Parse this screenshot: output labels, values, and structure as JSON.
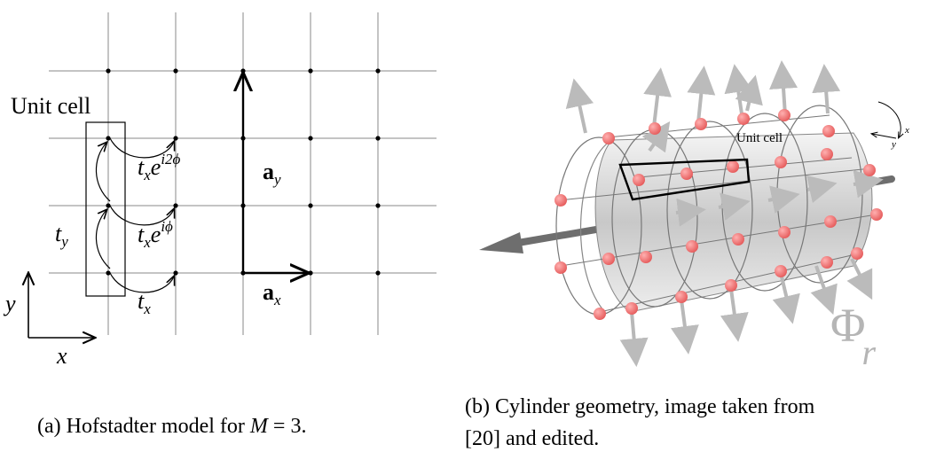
{
  "panel_a": {
    "unit_cell_label": "Unit cell",
    "hop_x": "t",
    "hop_x_sub": "x",
    "hop_phase1_base": "t",
    "hop_phase1_sub": "x",
    "hop_phase1_e": "e",
    "hop_phase1_exp": "iϕ",
    "hop_phase2_base": "t",
    "hop_phase2_sub": "x",
    "hop_phase2_e": "e",
    "hop_phase2_exp": "i2ϕ",
    "hop_y": "t",
    "hop_y_sub": "y",
    "vec_ax": "a",
    "vec_ax_sub": "x",
    "vec_ay": "a",
    "vec_ay_sub": "y",
    "axis_x": "x",
    "axis_y": "y",
    "caption_prefix": "(a) Hofstadter model for ",
    "caption_math": "M",
    "caption_suffix": " = 3."
  },
  "panel_b": {
    "unit_cell_label": "Unit cell",
    "axis_x": "x",
    "axis_y": "y",
    "flux_symbol": "Φ",
    "flux_sub": "r",
    "caption_line1": "(b) Cylinder geometry, image taken from",
    "caption_line2": "[20] and edited."
  },
  "colors": {
    "site_red": "#f07070",
    "cylinder_grey": "#cfcfcf",
    "arrow_grey": "#b8b8b8",
    "flux_axis": "#6e6e6e",
    "grid_line": "#888888"
  }
}
